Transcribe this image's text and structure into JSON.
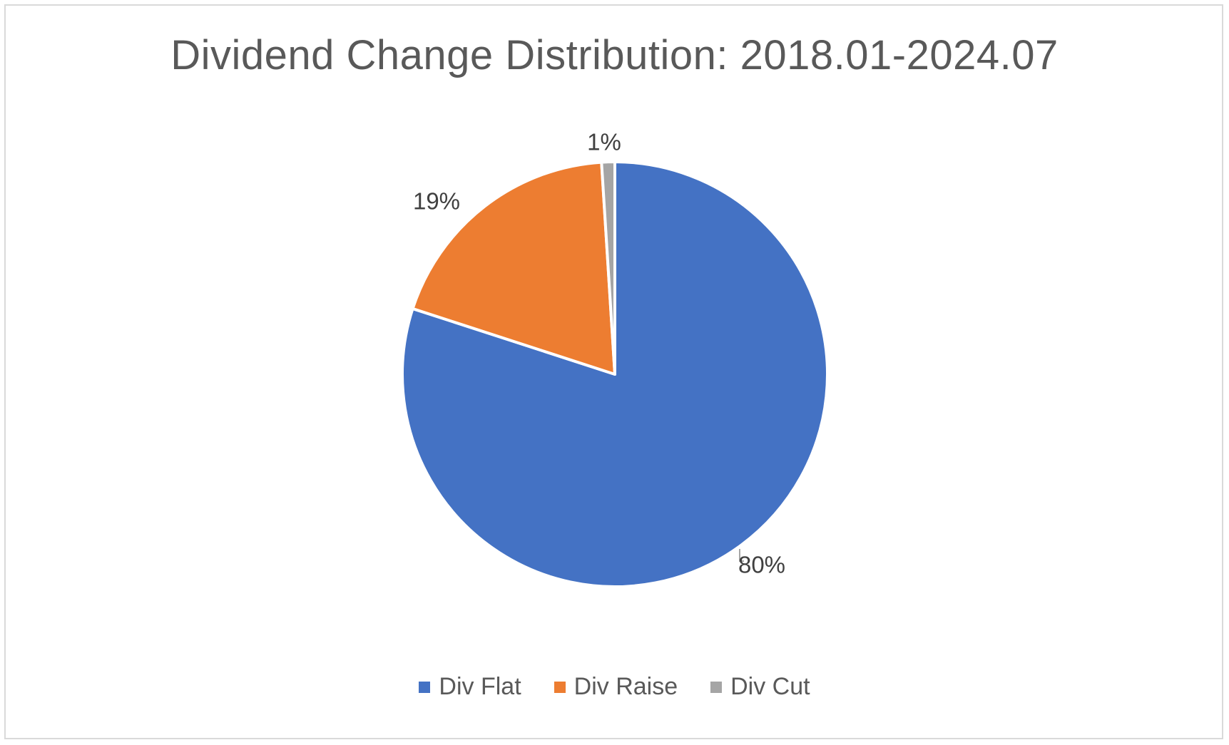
{
  "chart_data": {
    "type": "pie",
    "title": "Dividend Change Distribution: 2018.01-2024.07",
    "slices": [
      {
        "name": "Div Flat",
        "value": 80,
        "label": "80%",
        "color": "#4472C4"
      },
      {
        "name": "Div Raise",
        "value": 19,
        "label": "19%",
        "color": "#ED7D31"
      },
      {
        "name": "Div Cut",
        "value": 1,
        "label": "1%",
        "color": "#A5A5A5"
      }
    ],
    "start_angle": "12 o'clock",
    "direction": "clockwise",
    "legend_position": "bottom"
  }
}
